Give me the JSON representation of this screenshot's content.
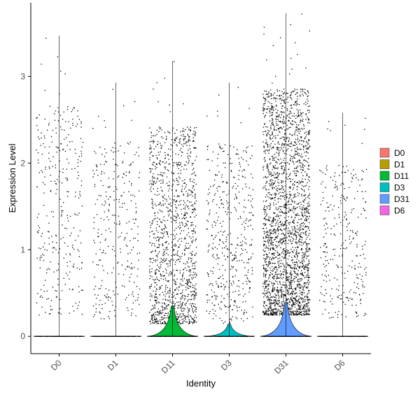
{
  "chart_data": {
    "type": "violin",
    "xlabel": "Identity",
    "ylabel": "Expression Level",
    "ylim": [
      -0.2,
      3.85
    ],
    "yticks": [
      0,
      1,
      2,
      3
    ],
    "grid": false,
    "legend_position": "right",
    "jitter_points": true,
    "series": [
      {
        "name": "D0",
        "color": "#F8766D",
        "max": 3.47,
        "point_count": 700,
        "zero_fraction": 0.55,
        "nonzero_range": [
          0.25,
          3.47
        ],
        "violin_peak_height": 0.0
      },
      {
        "name": "D1",
        "color": "#B79F00",
        "max": 2.93,
        "point_count": 650,
        "zero_fraction": 0.55,
        "nonzero_range": [
          0.2,
          2.93
        ],
        "violin_peak_height": 0.0
      },
      {
        "name": "D11",
        "color": "#00BA38",
        "max": 3.18,
        "point_count": 2400,
        "zero_fraction": 0.45,
        "nonzero_range": [
          0.15,
          3.18
        ],
        "violin_peak_height": 0.25
      },
      {
        "name": "D3",
        "color": "#00BFC4",
        "max": 2.93,
        "point_count": 900,
        "zero_fraction": 0.5,
        "nonzero_range": [
          0.15,
          2.93
        ],
        "violin_peak_height": 0.1
      },
      {
        "name": "D31",
        "color": "#619CFF",
        "max": 3.73,
        "point_count": 4200,
        "zero_fraction": 0.4,
        "nonzero_range": [
          0.25,
          3.73
        ],
        "violin_peak_height": 0.28
      },
      {
        "name": "D6",
        "color": "#F564E3",
        "max": 2.58,
        "point_count": 650,
        "zero_fraction": 0.55,
        "nonzero_range": [
          0.2,
          2.58
        ],
        "violin_peak_height": 0.0
      }
    ]
  }
}
